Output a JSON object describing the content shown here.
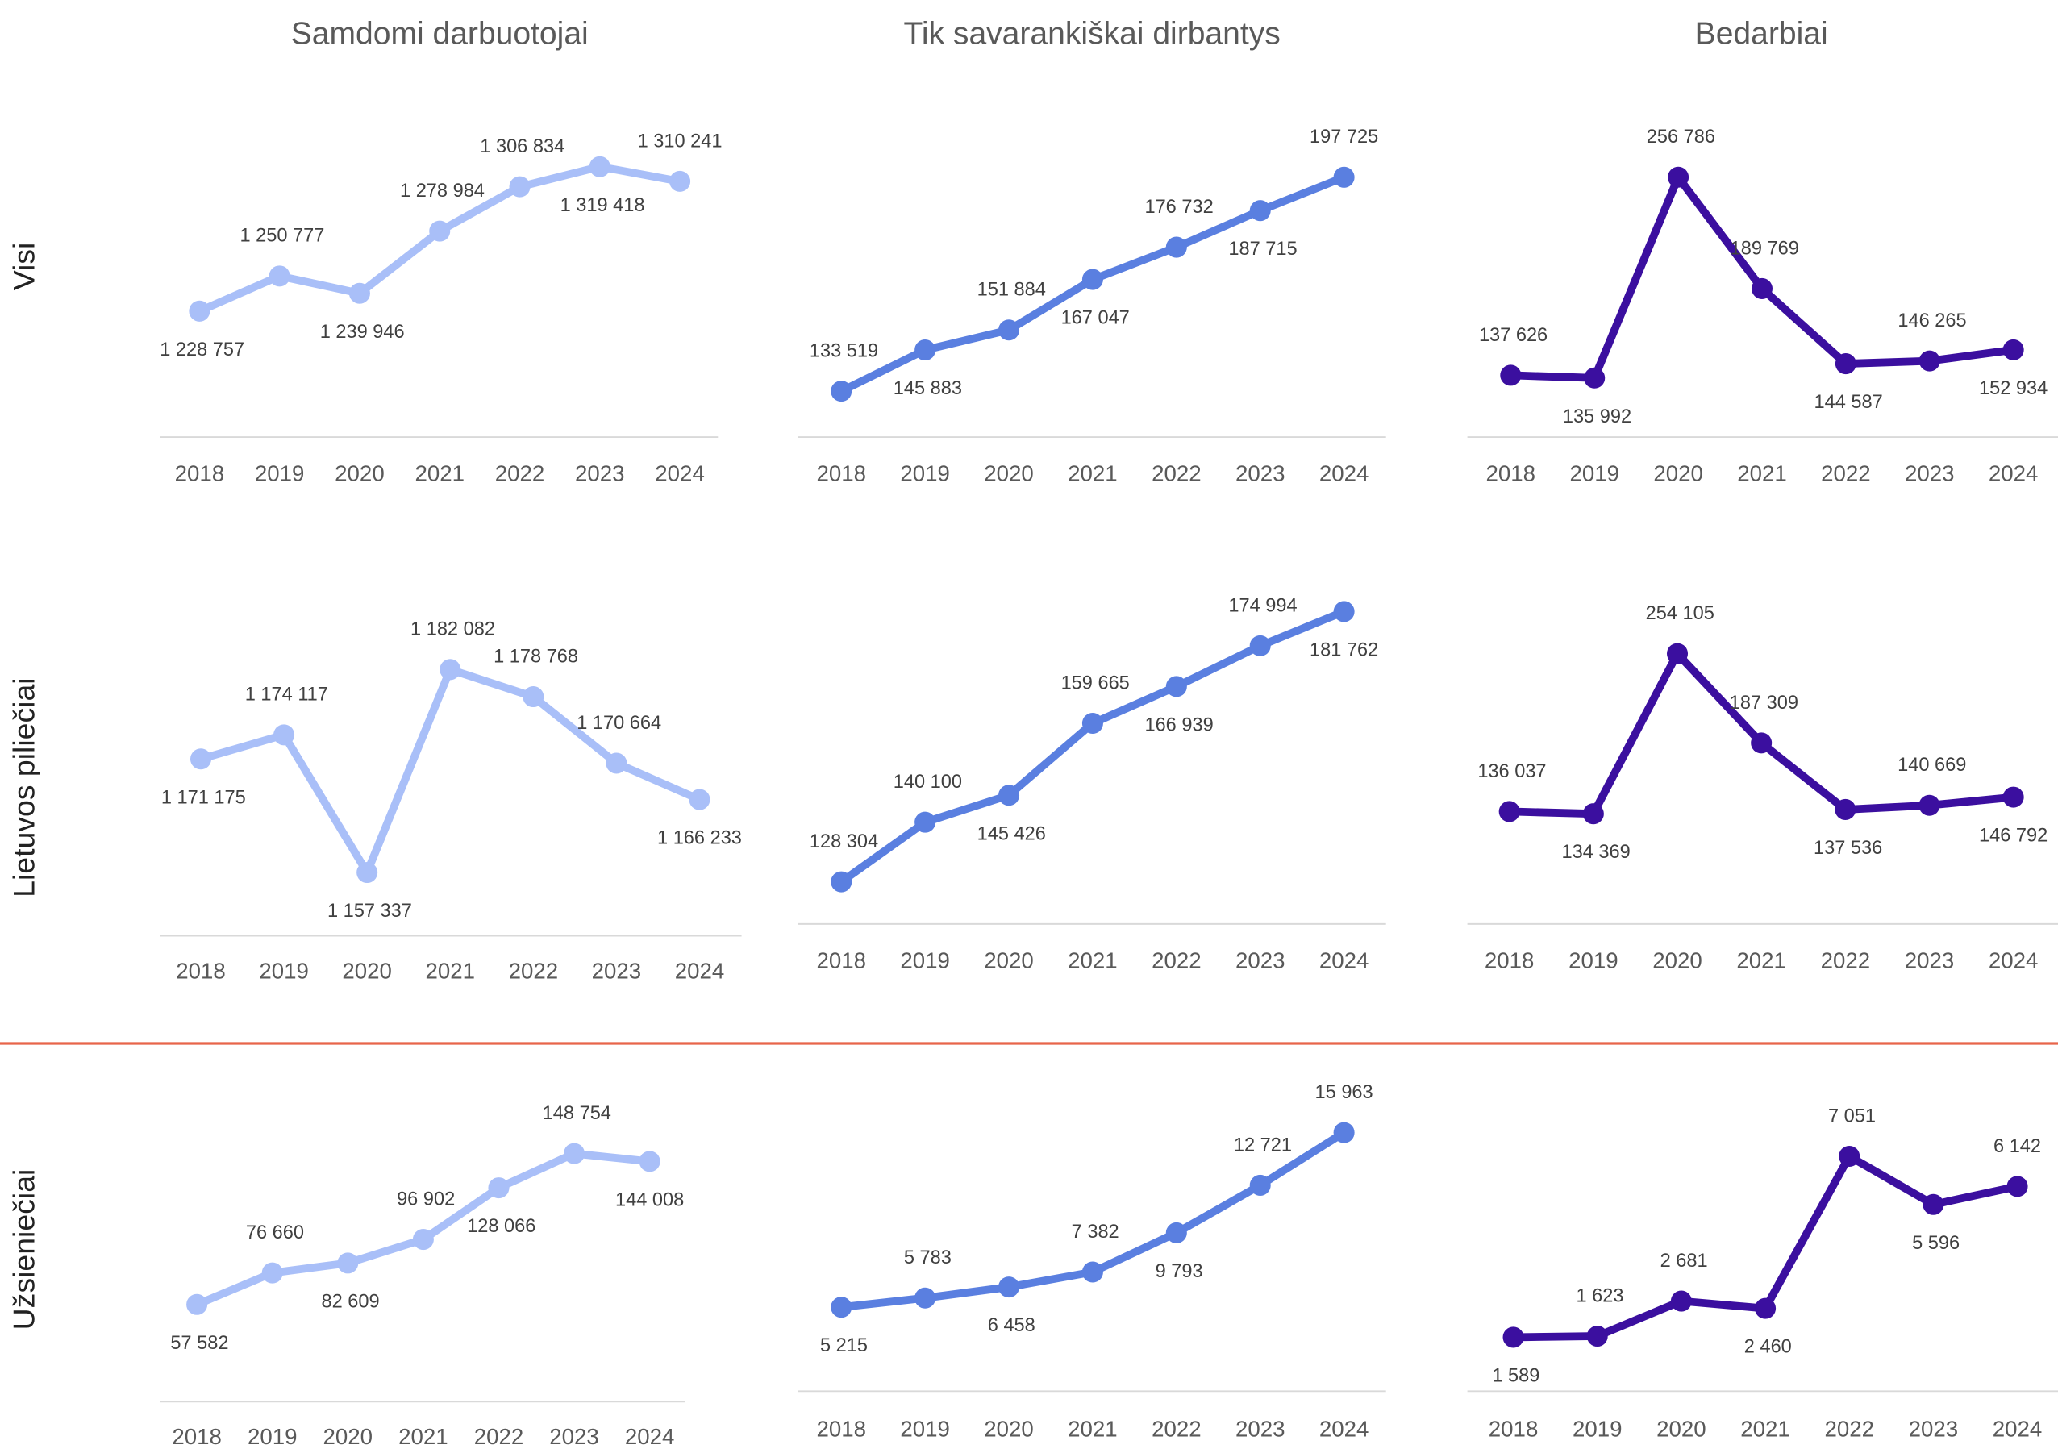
{
  "column_titles": [
    "Samdomi darbuotojai",
    "Tik savarankiškai dirbantys",
    "Bedarbiai"
  ],
  "row_labels": [
    "Visi",
    "Lietuvos piliečiai",
    "Užsieniečiai"
  ],
  "chart_data": [
    {
      "type": "line",
      "color": "#a9bff8",
      "ylim": [
        1168600,
        1349900
      ],
      "categories": [
        "2018",
        "2019",
        "2020",
        "2021",
        "2022",
        "2023",
        "2024"
      ],
      "values": [
        1228757,
        1250777,
        1239946,
        1278984,
        1306834,
        1319418,
        1310241
      ],
      "value_labels": [
        "1 228 757",
        "1 250 777",
        "1 239 946",
        "1 278 984",
        "1 306 834",
        "1 319 418",
        "1 310 241"
      ]
    },
    {
      "type": "line",
      "color": "#5a7fe0",
      "ylim": [
        128800,
        215450
      ],
      "categories": [
        "2018",
        "2019",
        "2020",
        "2021",
        "2022",
        "2023",
        "2024"
      ],
      "values": [
        133519,
        145883,
        151884,
        167047,
        176732,
        187715,
        197725
      ],
      "value_labels": [
        "133 519",
        "145 883",
        "151 884",
        "167 047",
        "176 732",
        "187 715",
        "197 725"
      ]
    },
    {
      "type": "line",
      "color": "#3b0f9f",
      "ylim": [
        118600,
        292300
      ],
      "categories": [
        "2018",
        "2019",
        "2020",
        "2021",
        "2022",
        "2023",
        "2024"
      ],
      "values": [
        137626,
        135992,
        256786,
        189769,
        144587,
        146265,
        152934
      ],
      "value_labels": [
        "137 626",
        "135 992",
        "256 786",
        "189 769",
        "144 587",
        "146 265",
        "152 934"
      ]
    },
    {
      "type": "line",
      "color": "#a9bff8",
      "ylim": [
        1154900,
        1190900
      ],
      "categories": [
        "2018",
        "2019",
        "2020",
        "2021",
        "2022",
        "2023",
        "2024"
      ],
      "values": [
        1171175,
        1174117,
        1157337,
        1182082,
        1178768,
        1170664,
        1166233
      ],
      "value_labels": [
        "1 171 175",
        "1 174 117",
        "1 157 337",
        "1 182 082",
        "1 178 768",
        "1 170 664",
        "1 166 233"
      ]
    },
    {
      "type": "line",
      "color": "#5a7fe0",
      "ylim": [
        126200,
        184600
      ],
      "categories": [
        "2018",
        "2019",
        "2020",
        "2021",
        "2022",
        "2023",
        "2024"
      ],
      "values": [
        128304,
        140100,
        145426,
        159665,
        166939,
        174994,
        181762
      ],
      "value_labels": [
        "128 304",
        "140 100",
        "145 426",
        "159 665",
        "166 939",
        "174 994",
        "181 762"
      ]
    },
    {
      "type": "line",
      "color": "#3b0f9f",
      "ylim": [
        75500,
        296300
      ],
      "categories": [
        "2018",
        "2019",
        "2020",
        "2021",
        "2022",
        "2023",
        "2024"
      ],
      "values": [
        136037,
        134369,
        254105,
        187309,
        137536,
        140669,
        146792
      ],
      "value_labels": [
        "136 037",
        "134 369",
        "254 105",
        "187 309",
        "137 536",
        "140 669",
        "146 792"
      ]
    },
    {
      "type": "line",
      "color": "#a9bff8",
      "ylim": [
        29000,
        171700
      ],
      "categories": [
        "2018",
        "2019",
        "2020",
        "2021",
        "2022",
        "2023",
        "2024"
      ],
      "values": [
        57582,
        76660,
        82609,
        96902,
        128066,
        148754,
        144008
      ],
      "value_labels": [
        "57 582",
        "76 660",
        "82 609",
        "96 902",
        "128 066",
        "148 754",
        "144 008"
      ]
    },
    {
      "type": "line",
      "color": "#5a7fe0",
      "ylim": [
        2470,
        17010
      ],
      "categories": [
        "2018",
        "2019",
        "2020",
        "2021",
        "2022",
        "2023",
        "2024"
      ],
      "values": [
        5215,
        5783,
        6458,
        7382,
        9793,
        12721,
        15963
      ],
      "value_labels": [
        "5 215",
        "5 783",
        "6 458",
        "7 382",
        "9 793",
        "12 721",
        "15 963"
      ]
    },
    {
      "type": "line",
      "color": "#3b0f9f",
      "ylim": [
        1150,
        8280
      ],
      "categories": [
        "2018",
        "2019",
        "2020",
        "2021",
        "2022",
        "2023",
        "2024"
      ],
      "values": [
        1589,
        1623,
        2681,
        2460,
        7051,
        5596,
        6142
      ],
      "value_labels": [
        "1 589",
        "1 623",
        "2 681",
        "2 460",
        "7 051",
        "5 596",
        "6 142"
      ]
    }
  ]
}
